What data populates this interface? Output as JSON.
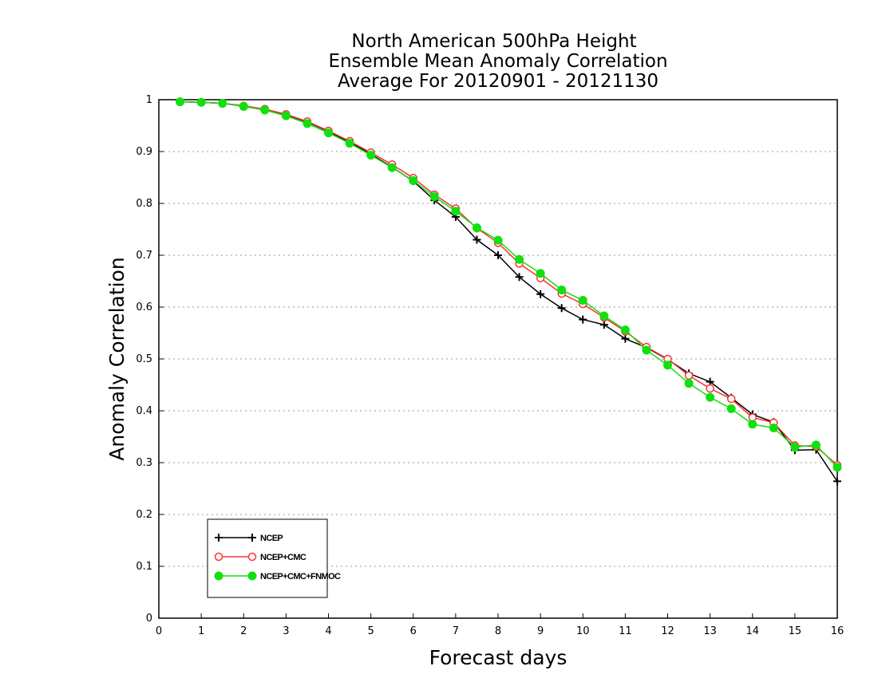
{
  "chart_data": {
    "type": "line",
    "title": [
      "North American 500hPa Height",
      "Ensemble Mean Anomaly Correlation",
      "Average For 20120901 - 20121130"
    ],
    "xlabel": "Forecast days",
    "ylabel": "Anomaly Correlation",
    "xlim": [
      0,
      16
    ],
    "ylim": [
      0,
      1
    ],
    "xticks": [
      "0",
      "1",
      "2",
      "3",
      "4",
      "5",
      "6",
      "7",
      "8",
      "9",
      "10",
      "11",
      "12",
      "13",
      "14",
      "15",
      "16"
    ],
    "yticks": [
      "0",
      "0.1",
      "0.2",
      "0.3",
      "0.4",
      "0.5",
      "0.6",
      "0.7",
      "0.8",
      "0.9",
      "1"
    ],
    "grid": "horizontal dotted",
    "legend_position": "bottom-left",
    "x": [
      0.5,
      1,
      1.5,
      2,
      2.5,
      3,
      3.5,
      4,
      4.5,
      5,
      5.5,
      6,
      6.5,
      7,
      7.5,
      8,
      8.5,
      9,
      9.5,
      10,
      10.5,
      11,
      11.5,
      12,
      12.5,
      13,
      13.5,
      14,
      14.5,
      15,
      15.5,
      16
    ],
    "series": [
      {
        "name": "NCEP",
        "color": "#000000",
        "marker": "plus",
        "values": [
          0.996,
          0.995,
          0.993,
          0.988,
          0.981,
          0.971,
          0.957,
          0.939,
          0.918,
          0.895,
          0.87,
          0.843,
          0.806,
          0.774,
          0.73,
          0.7,
          0.658,
          0.625,
          0.598,
          0.576,
          0.566,
          0.539,
          0.522,
          0.499,
          0.472,
          0.456,
          0.425,
          0.393,
          0.378,
          0.324,
          0.325,
          0.264
        ]
      },
      {
        "name": "NCEP+CMC",
        "color": "#ff3030",
        "marker": "open-circle",
        "values": [
          0.996,
          0.995,
          0.993,
          0.988,
          0.982,
          0.972,
          0.958,
          0.94,
          0.92,
          0.898,
          0.875,
          0.849,
          0.817,
          0.79,
          0.752,
          0.724,
          0.684,
          0.656,
          0.626,
          0.606,
          0.58,
          0.553,
          0.523,
          0.5,
          0.468,
          0.443,
          0.423,
          0.387,
          0.377,
          0.333,
          0.331,
          0.295
        ]
      },
      {
        "name": "NCEP+CMC+FNMOC",
        "color": "#10e010",
        "marker": "filled-circle",
        "values": [
          0.996,
          0.995,
          0.993,
          0.987,
          0.98,
          0.969,
          0.954,
          0.936,
          0.916,
          0.893,
          0.869,
          0.844,
          0.813,
          0.785,
          0.753,
          0.729,
          0.692,
          0.665,
          0.633,
          0.613,
          0.583,
          0.556,
          0.517,
          0.488,
          0.453,
          0.426,
          0.404,
          0.374,
          0.367,
          0.33,
          0.334,
          0.291
        ]
      }
    ]
  }
}
